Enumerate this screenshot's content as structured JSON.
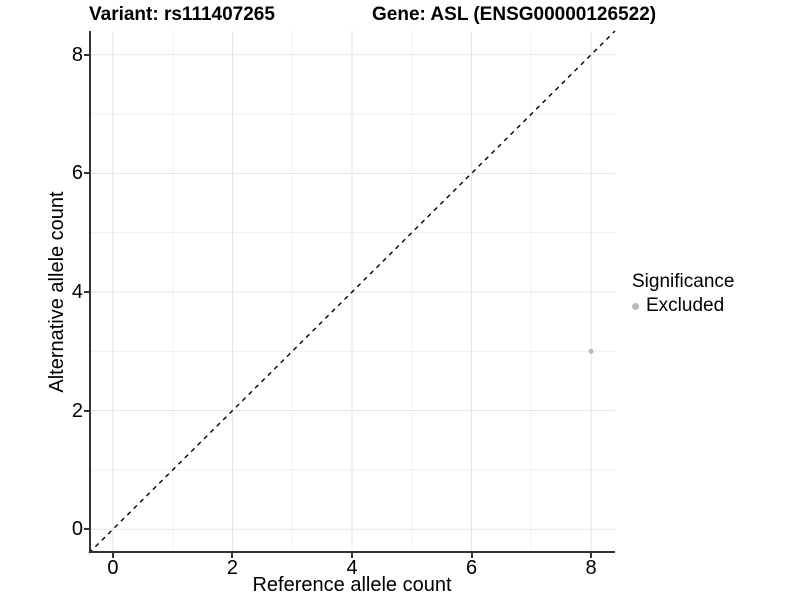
{
  "chart_data": {
    "type": "scatter",
    "title_left": "Variant: rs111407265",
    "title_right": "Gene: ASL (ENSG00000126522)",
    "xlabel": "Reference allele count",
    "ylabel": "Alternative allele count",
    "xlim": [
      -0.4,
      8.4
    ],
    "ylim": [
      -0.4,
      8.4
    ],
    "x_ticks": [
      0,
      2,
      4,
      6,
      8
    ],
    "y_ticks": [
      0,
      2,
      4,
      6,
      8
    ],
    "x_tick_labels": [
      "0",
      "2",
      "4",
      "6",
      "8"
    ],
    "y_tick_labels": [
      "0",
      "2",
      "4",
      "6",
      "8"
    ],
    "minor_ticks": [
      1,
      3,
      5,
      7
    ],
    "grid": true,
    "series": [
      {
        "name": "Excluded",
        "color": "#b9b9b9",
        "points": [
          {
            "x": 8,
            "y": 3
          }
        ]
      }
    ],
    "reference_line": {
      "type": "identity",
      "slope": 1,
      "intercept": 0,
      "style": "dashed",
      "color": "#000000"
    },
    "legend": {
      "title": "Significance",
      "position": "right",
      "entries": [
        {
          "label": "Excluded",
          "color": "#b9b9b9"
        }
      ]
    },
    "colors": {
      "grid_major": "#e3e3e3",
      "grid_minor": "#f1f1f1",
      "axis": "#333333",
      "text": "#000000"
    }
  }
}
